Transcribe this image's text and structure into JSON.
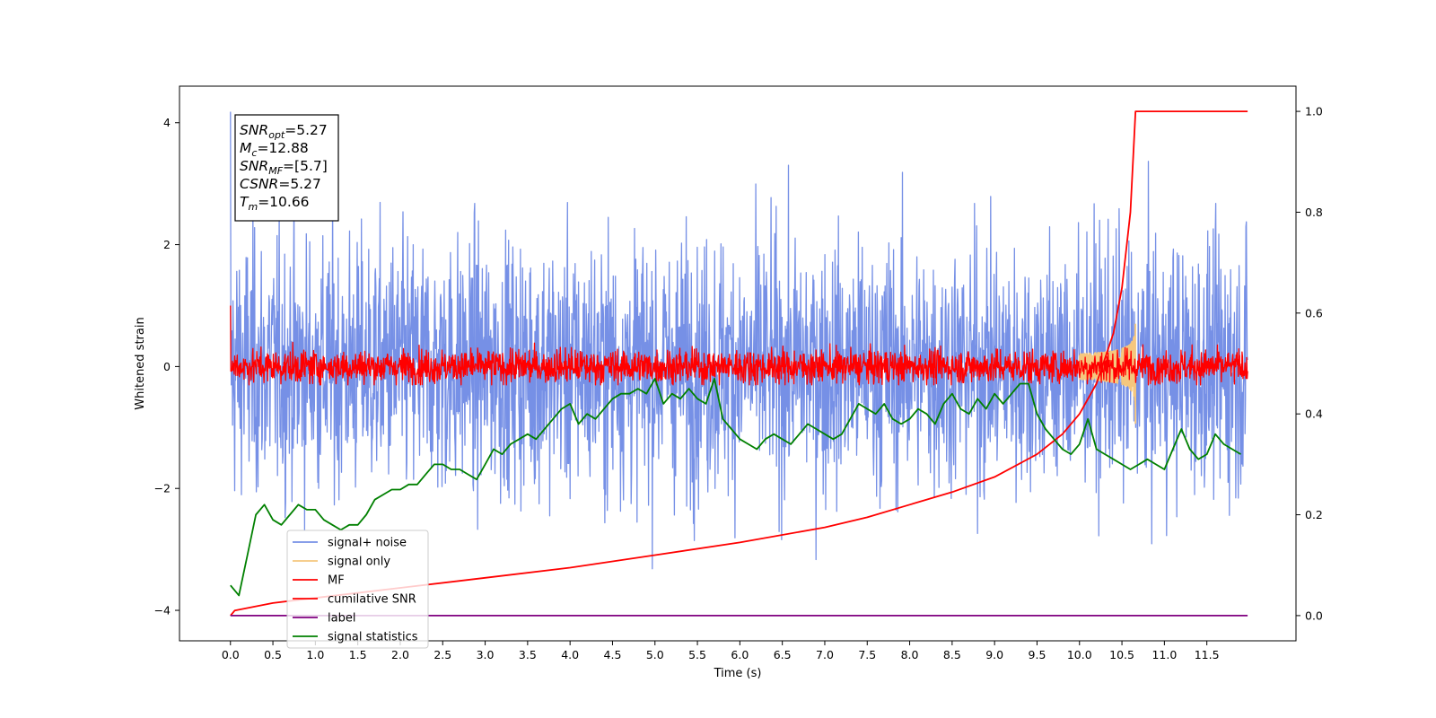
{
  "chart_data": {
    "type": "line",
    "xlabel": "Time (s)",
    "ylabel": "Whitened strain",
    "xlim": [
      -0.6,
      12.55
    ],
    "ylim": [
      -4.5,
      4.6
    ],
    "y2lim": [
      -0.05,
      1.05
    ],
    "grid": false,
    "legend_position": "lower-left",
    "x_ticks": [
      "0.0",
      "0.5",
      "1.0",
      "1.5",
      "2.0",
      "2.5",
      "3.0",
      "3.5",
      "4.0",
      "4.5",
      "5.0",
      "5.5",
      "6.0",
      "6.5",
      "7.0",
      "7.5",
      "8.0",
      "8.5",
      "9.0",
      "9.5",
      "10.0",
      "10.5",
      "11.0",
      "11.5"
    ],
    "y_ticks": [
      "4",
      "2",
      "0",
      "−2",
      "−4"
    ],
    "y2_ticks": [
      "1.0",
      "0.8",
      "0.6",
      "0.4",
      "0.2",
      "0.0"
    ],
    "annotation": [
      {
        "sym": "SNR",
        "sub": "opt",
        "value": "=5.27"
      },
      {
        "sym": "M",
        "sub": "c",
        "value": "=12.88"
      },
      {
        "sym": "SNR",
        "sub": "MF",
        "value": "=[5.7]"
      },
      {
        "sym": "CSNR",
        "sub": "",
        "value": "=5.27"
      },
      {
        "sym": "T",
        "sub": "m",
        "value": "=10.66"
      }
    ],
    "series": [
      {
        "name": "signal+ noise",
        "color": "#7690e6",
        "axis": "left",
        "kind": "noise",
        "t_start": 0.0,
        "t_end": 11.98,
        "std": 1.05,
        "y_range": [
          -3.75,
          4.18
        ]
      },
      {
        "name": "signal only",
        "color": "#f5c77e",
        "axis": "left",
        "kind": "chirp",
        "t_start": 10.0,
        "t_end": 10.66,
        "peak_amplitude": 0.95
      },
      {
        "name": "MF",
        "color": "#ff0000",
        "axis": "left",
        "kind": "noise",
        "t_start": 0.0,
        "t_end": 11.98,
        "std": 0.14,
        "y_range": [
          -0.3,
          1.0
        ]
      },
      {
        "name": "cumilative SNR",
        "color": "#ff0000",
        "axis": "right",
        "kind": "line",
        "x": [
          0.0,
          0.05,
          0.5,
          1.0,
          2.0,
          3.0,
          4.0,
          5.0,
          6.0,
          7.0,
          7.5,
          8.0,
          8.5,
          9.0,
          9.5,
          9.8,
          10.0,
          10.2,
          10.4,
          10.5,
          10.6,
          10.66,
          11.98
        ],
        "y": [
          0.0,
          0.01,
          0.025,
          0.035,
          0.055,
          0.075,
          0.095,
          0.12,
          0.145,
          0.175,
          0.195,
          0.22,
          0.245,
          0.275,
          0.32,
          0.36,
          0.4,
          0.46,
          0.56,
          0.65,
          0.8,
          1.0,
          1.0
        ]
      },
      {
        "name": "label",
        "color": "#800080",
        "axis": "right",
        "kind": "line",
        "x": [
          0.0,
          11.98
        ],
        "y": [
          0.0,
          0.0
        ]
      },
      {
        "name": "signal statistics",
        "color": "#008000",
        "axis": "right",
        "kind": "line",
        "x": [
          0.0,
          0.1,
          0.2,
          0.3,
          0.4,
          0.5,
          0.6,
          0.7,
          0.8,
          0.9,
          1.0,
          1.1,
          1.2,
          1.3,
          1.4,
          1.5,
          1.6,
          1.7,
          1.8,
          1.9,
          2.0,
          2.1,
          2.2,
          2.3,
          2.4,
          2.5,
          2.6,
          2.7,
          2.8,
          2.9,
          3.0,
          3.1,
          3.2,
          3.3,
          3.4,
          3.5,
          3.6,
          3.7,
          3.8,
          3.9,
          4.0,
          4.1,
          4.2,
          4.3,
          4.4,
          4.5,
          4.6,
          4.7,
          4.8,
          4.9,
          5.0,
          5.1,
          5.2,
          5.3,
          5.4,
          5.5,
          5.6,
          5.7,
          5.8,
          5.9,
          6.0,
          6.1,
          6.2,
          6.3,
          6.4,
          6.5,
          6.6,
          6.7,
          6.8,
          6.9,
          7.0,
          7.1,
          7.2,
          7.3,
          7.4,
          7.5,
          7.6,
          7.7,
          7.8,
          7.9,
          8.0,
          8.1,
          8.2,
          8.3,
          8.4,
          8.5,
          8.6,
          8.7,
          8.8,
          8.9,
          9.0,
          9.1,
          9.2,
          9.3,
          9.4,
          9.5,
          9.6,
          9.7,
          9.8,
          9.9,
          10.0,
          10.1,
          10.2,
          10.3,
          10.4,
          10.5,
          10.6,
          10.7,
          10.8,
          10.9,
          11.0,
          11.1,
          11.2,
          11.3,
          11.4,
          11.5,
          11.6,
          11.7,
          11.8,
          11.9
        ],
        "y": [
          0.06,
          0.04,
          0.12,
          0.2,
          0.22,
          0.19,
          0.18,
          0.2,
          0.22,
          0.21,
          0.21,
          0.19,
          0.18,
          0.17,
          0.18,
          0.18,
          0.2,
          0.23,
          0.24,
          0.25,
          0.25,
          0.26,
          0.26,
          0.28,
          0.3,
          0.3,
          0.29,
          0.29,
          0.28,
          0.27,
          0.3,
          0.33,
          0.32,
          0.34,
          0.35,
          0.36,
          0.35,
          0.37,
          0.39,
          0.41,
          0.42,
          0.38,
          0.4,
          0.39,
          0.41,
          0.43,
          0.44,
          0.44,
          0.45,
          0.44,
          0.47,
          0.42,
          0.44,
          0.43,
          0.45,
          0.43,
          0.42,
          0.47,
          0.39,
          0.37,
          0.35,
          0.34,
          0.33,
          0.35,
          0.36,
          0.35,
          0.34,
          0.36,
          0.38,
          0.37,
          0.36,
          0.35,
          0.36,
          0.39,
          0.42,
          0.41,
          0.4,
          0.42,
          0.39,
          0.38,
          0.39,
          0.41,
          0.4,
          0.38,
          0.42,
          0.44,
          0.41,
          0.4,
          0.43,
          0.41,
          0.44,
          0.42,
          0.44,
          0.46,
          0.46,
          0.4,
          0.37,
          0.35,
          0.33,
          0.32,
          0.34,
          0.39,
          0.33,
          0.32,
          0.31,
          0.3,
          0.29,
          0.3,
          0.31,
          0.3,
          0.29,
          0.33,
          0.37,
          0.33,
          0.31,
          0.32,
          0.36,
          0.34,
          0.33,
          0.32
        ]
      }
    ]
  }
}
